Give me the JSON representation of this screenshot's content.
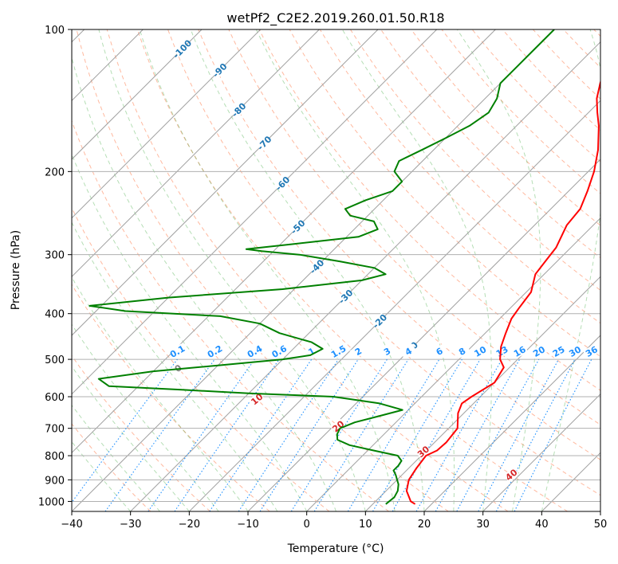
{
  "chart_data": {
    "type": "line",
    "subtype": "skew-T log-p diagram",
    "title": "wetPf2_C2E2.2019.260.01.50.R18",
    "xlabel": "Temperature (°C)",
    "ylabel": "Pressure (hPa)",
    "xlim": [
      -40,
      50
    ],
    "ylim": [
      1050,
      100
    ],
    "y_scale": "log",
    "grid": true,
    "x_ticks": [
      -40,
      -30,
      -20,
      -10,
      0,
      10,
      20,
      30,
      40,
      50
    ],
    "y_ticks": [
      1000,
      900,
      800,
      700,
      600,
      500,
      400,
      300,
      200,
      100
    ],
    "series": [
      {
        "color": "#ff0000",
        "points": [
          [
            1013,
            17.2
          ],
          [
            1000,
            16.0
          ],
          [
            950,
            13.5
          ],
          [
            900,
            12.0
          ],
          [
            850,
            11.3
          ],
          [
            800,
            10.8
          ],
          [
            780,
            11.8
          ],
          [
            750,
            12.0
          ],
          [
            700,
            11.5
          ],
          [
            650,
            9.0
          ],
          [
            620,
            8.0
          ],
          [
            600,
            8.5
          ],
          [
            560,
            10.0
          ],
          [
            520,
            9.0
          ],
          [
            500,
            7.0
          ],
          [
            470,
            5.0
          ],
          [
            440,
            3.5
          ],
          [
            410,
            2.0
          ],
          [
            390,
            1.5
          ],
          [
            360,
            0.8
          ],
          [
            330,
            -1.5
          ],
          [
            310,
            -2.0
          ],
          [
            290,
            -2.5
          ],
          [
            260,
            -4.5
          ],
          [
            240,
            -5.0
          ],
          [
            220,
            -6.8
          ],
          [
            200,
            -9.0
          ],
          [
            180,
            -12.0
          ],
          [
            160,
            -16.0
          ],
          [
            150,
            -18.5
          ],
          [
            140,
            -21.0
          ],
          [
            130,
            -23.0
          ],
          [
            120,
            -25.0
          ],
          [
            110,
            -27.5
          ],
          [
            100,
            -30.5
          ]
        ]
      },
      {
        "color": "#008000",
        "points": [
          [
            1013,
            12.2
          ],
          [
            980,
            12.5
          ],
          [
            950,
            12.0
          ],
          [
            920,
            11.0
          ],
          [
            900,
            10.0
          ],
          [
            880,
            9.0
          ],
          [
            860,
            7.8
          ],
          [
            840,
            7.8
          ],
          [
            820,
            7.5
          ],
          [
            800,
            6.0
          ],
          [
            780,
            1.0
          ],
          [
            760,
            -4.0
          ],
          [
            740,
            -7.0
          ],
          [
            720,
            -8.0
          ],
          [
            700,
            -8.5
          ],
          [
            680,
            -7.0
          ],
          [
            660,
            -4.0
          ],
          [
            640,
            -1.0
          ],
          [
            620,
            -6.0
          ],
          [
            600,
            -15.0
          ],
          [
            590,
            -30.0
          ],
          [
            580,
            -42.0
          ],
          [
            570,
            -55.0
          ],
          [
            550,
            -58.0
          ],
          [
            530,
            -50.0
          ],
          [
            515,
            -40.0
          ],
          [
            500,
            -30.0
          ],
          [
            490,
            -26.0
          ],
          [
            475,
            -25.0
          ],
          [
            460,
            -28.0
          ],
          [
            440,
            -35.0
          ],
          [
            420,
            -40.0
          ],
          [
            405,
            -48.0
          ],
          [
            395,
            -65.0
          ],
          [
            385,
            -72.0
          ],
          [
            370,
            -60.0
          ],
          [
            355,
            -42.0
          ],
          [
            340,
            -30.0
          ],
          [
            330,
            -27.0
          ],
          [
            320,
            -30.0
          ],
          [
            310,
            -37.0
          ],
          [
            300,
            -45.0
          ],
          [
            295,
            -52.0
          ],
          [
            292,
            -55.0
          ],
          [
            285,
            -48.0
          ],
          [
            275,
            -38.0
          ],
          [
            265,
            -36.0
          ],
          [
            255,
            -38.0
          ],
          [
            248,
            -43.0
          ],
          [
            240,
            -45.0
          ],
          [
            230,
            -43.0
          ],
          [
            220,
            -40.0
          ],
          [
            210,
            -40.0
          ],
          [
            200,
            -43.0
          ],
          [
            190,
            -44.0
          ],
          [
            180,
            -42.0
          ],
          [
            170,
            -40.0
          ],
          [
            160,
            -38.0
          ],
          [
            150,
            -37.0
          ],
          [
            140,
            -38.0
          ],
          [
            130,
            -40.0
          ],
          [
            120,
            -40.0
          ],
          [
            110,
            -40.0
          ],
          [
            100,
            -40.0
          ]
        ]
      }
    ],
    "isotherm_labels": [
      "-100",
      "-90",
      "-80",
      "-70",
      "-60",
      "-50",
      "-40",
      "-30",
      "-20",
      "-10"
    ],
    "mixing_ratio_labels": [
      "0.1",
      "0.2",
      "0.4",
      "0.6",
      "1",
      "1.5",
      "2",
      "3",
      "4",
      "6",
      "8",
      "10",
      "13",
      "16",
      "20",
      "25",
      "30",
      "36"
    ],
    "dry_adiabat_labels": [
      "0",
      "10",
      "20",
      "30",
      "40"
    ],
    "colors": {
      "temperature": "#ff0000",
      "dewpoint": "#008000",
      "isotherm_label": "#1f77b4",
      "mixing_ratio": "#1e90ff",
      "dry_adiabat": "#ff7f50",
      "moist_adiabat": "#2ca02c",
      "adiabat_label": "#d62728"
    }
  }
}
